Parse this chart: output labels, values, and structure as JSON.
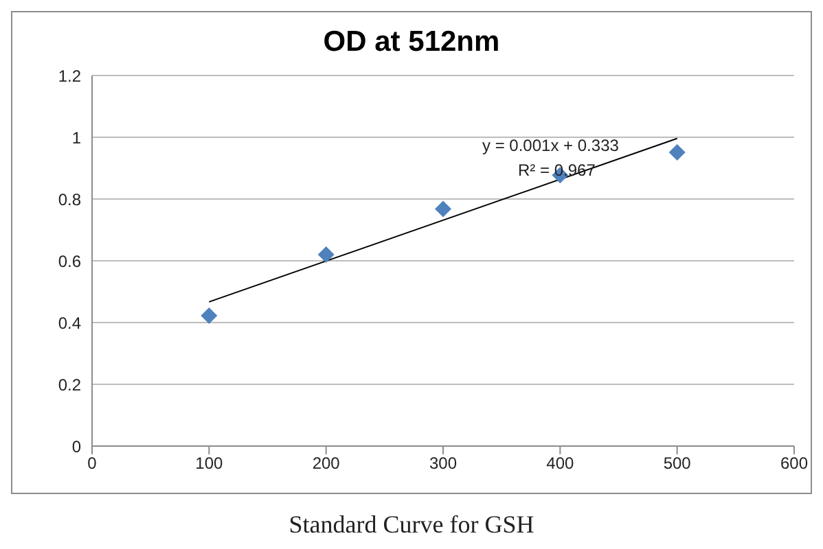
{
  "chart_data": {
    "type": "scatter",
    "title": "OD at 512nm",
    "x": [
      100,
      200,
      300,
      400,
      500
    ],
    "series": [
      {
        "color": "#4f81bd",
        "marker": "diamond",
        "values": [
          0.422,
          0.62,
          0.768,
          0.877,
          0.951
        ]
      },
      {
        "type": "line",
        "color": "#000000",
        "marker": "none",
        "x": [
          100,
          500
        ],
        "values": [
          0.467,
          0.996
        ]
      }
    ],
    "xlim": [
      0,
      600
    ],
    "xticks": [
      0,
      100,
      200,
      300,
      400,
      500,
      600
    ],
    "ylim": [
      0,
      1.2
    ],
    "yticks": [
      0,
      0.2,
      0.4,
      0.6,
      0.8,
      1,
      1.2
    ],
    "grid": "y",
    "legend": false,
    "annotations": [
      "y = 0.001x + 0.333",
      "R² = 0.967",
      "Standard Curve for GSH"
    ]
  }
}
